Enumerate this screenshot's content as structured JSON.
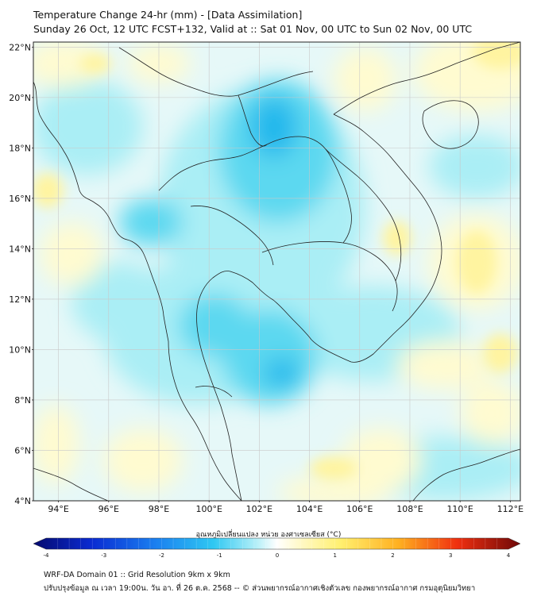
{
  "header": {
    "title": "Temperature Change 24-hr (mm) - [Data Assimilation]",
    "subtitle": "Sunday 26 Oct, 12 UTC FCST+132, Valid at :: Sat 01 Nov, 00 UTC to Sun 02 Nov, 00 UTC"
  },
  "map": {
    "lon_range": [
      93,
      112.4
    ],
    "lat_range": [
      4,
      22.2
    ],
    "lat_ticks": [
      "22°N",
      "20°N",
      "18°N",
      "16°N",
      "14°N",
      "12°N",
      "10°N",
      "8°N",
      "6°N",
      "4°N"
    ],
    "lat_values": [
      22,
      20,
      18,
      16,
      14,
      12,
      10,
      8,
      6,
      4
    ],
    "lon_ticks": [
      "94°E",
      "96°E",
      "98°E",
      "100°E",
      "102°E",
      "104°E",
      "106°E",
      "108°E",
      "110°E",
      "112°E"
    ],
    "lon_values": [
      94,
      96,
      98,
      100,
      102,
      104,
      106,
      108,
      110,
      112
    ],
    "colors": {
      "ocean_base": "#e6f8f8",
      "cold_light": "#aaeef5",
      "cold_mid": "#5cd8f0",
      "cold_strong": "#22b8ec",
      "warm_light": "#fffbd0",
      "warm_mid": "#fff4a0",
      "coast": "#222222",
      "grid": "#c8c8c8"
    }
  },
  "colorbar": {
    "title": "อุณหภูมิเปลี่ยนแปลง หน่วย องศาเซลเซียส (°C)",
    "min": -4,
    "max": 4,
    "ticks": [
      "-4",
      "-3",
      "-2",
      "-1",
      "0",
      "1",
      "2",
      "3",
      "4"
    ],
    "tick_values": [
      -4,
      -3,
      -2,
      -1,
      0,
      1,
      2,
      3,
      4
    ]
  },
  "footer": {
    "line1": "WRF-DA Domain 01 :: Grid Resolution 9km x 9km",
    "line2": "ปรับปรุงข้อมูล ณ เวลา 19:00น. วัน อา. ที่ 26 ต.ค. 2568 -- © ส่วนพยากรณ์อากาศเชิงตัวเลข กองพยากรณ์อากาศ กรมอุตุนิยมวิทยา"
  }
}
